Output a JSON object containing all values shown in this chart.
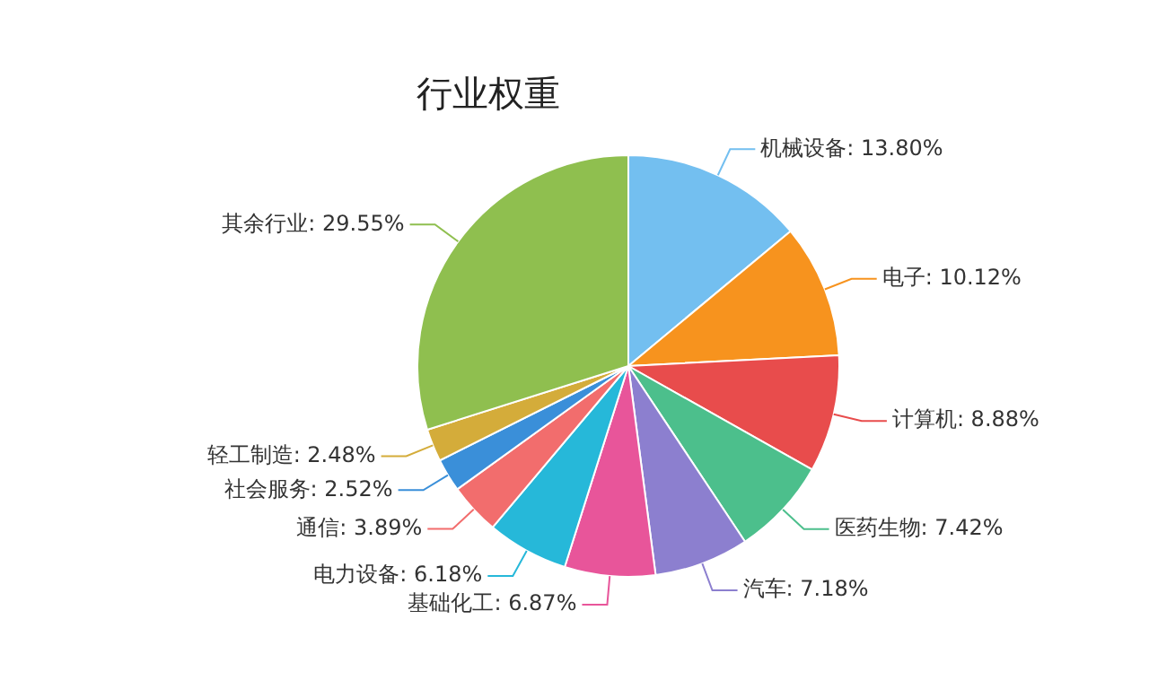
{
  "chart_data": {
    "type": "pie",
    "title": "行业权重",
    "legend": false,
    "categories": [
      "机械设备",
      "电子",
      "计算机",
      "医药生物",
      "汽车",
      "基础化工",
      "电力设备",
      "通信",
      "社会服务",
      "轻工制造",
      "其余行业"
    ],
    "values": [
      13.8,
      10.12,
      8.88,
      7.42,
      7.18,
      6.87,
      6.18,
      3.89,
      2.52,
      2.48,
      29.55
    ],
    "value_labels": [
      "13.80%",
      "10.12%",
      "8.88%",
      "7.42%",
      "7.18%",
      "6.87%",
      "6.18%",
      "3.89%",
      "2.52%",
      "2.48%",
      "29.55%"
    ],
    "colors": [
      "#73bff0",
      "#f7931e",
      "#e84c4c",
      "#4cbf8c",
      "#8c7fcf",
      "#e8559a",
      "#26b8d9",
      "#f26d6d",
      "#3a8fd9",
      "#d4ac3a",
      "#8fbf4f"
    ]
  }
}
